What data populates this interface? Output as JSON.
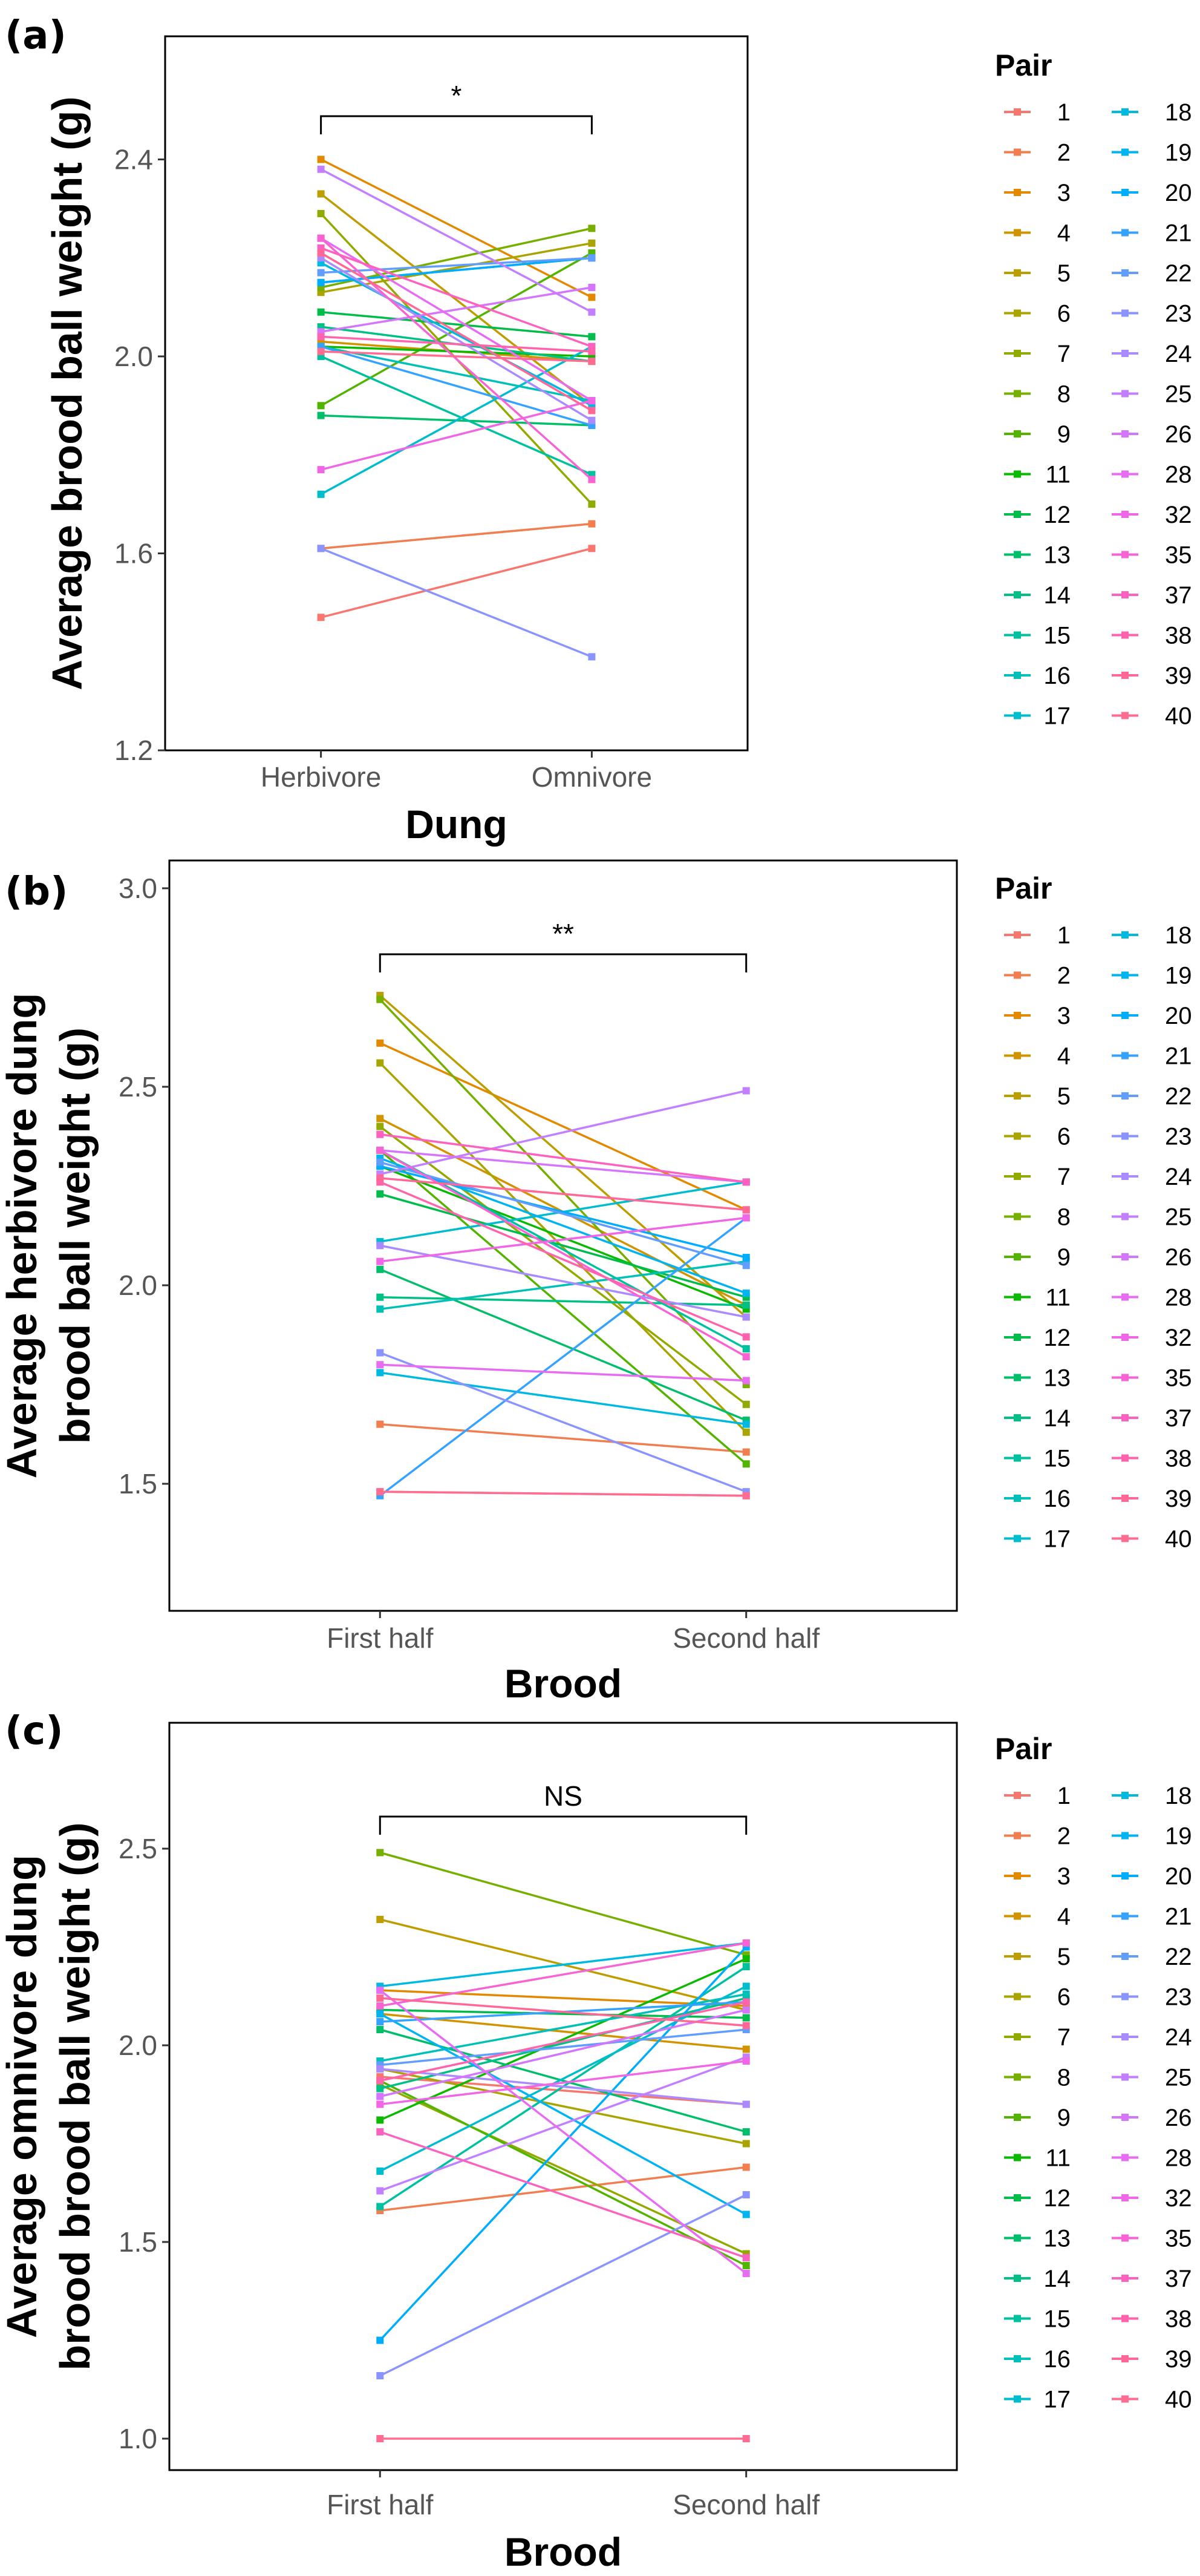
{
  "pairs": [
    "1",
    "2",
    "3",
    "4",
    "5",
    "6",
    "7",
    "8",
    "9",
    "11",
    "12",
    "13",
    "14",
    "15",
    "16",
    "17",
    "18",
    "19",
    "20",
    "21",
    "22",
    "23",
    "24",
    "25",
    "26",
    "28",
    "32",
    "35",
    "37",
    "38",
    "39",
    "40"
  ],
  "colors": [
    "#F8766D",
    "#F07E4F",
    "#E38900",
    "#D19400",
    "#BD9D00",
    "#A9A400",
    "#92AA00",
    "#77AF00",
    "#53B400",
    "#0BB901",
    "#00BC4A",
    "#00BE6A",
    "#00C085",
    "#00C19F",
    "#00C0B8",
    "#00BDCE",
    "#00B9E1",
    "#00B3F1",
    "#00ACFC",
    "#35A2FF",
    "#619CFF",
    "#8A94FF",
    "#A98BFF",
    "#C27FFF",
    "#D575FE",
    "#E76BF3",
    "#F066E6",
    "#F863D3",
    "#FC61C0",
    "#FF63AC",
    "#FF6797",
    "#FF6C91"
  ],
  "legend_title": "Pair",
  "chart_data": [
    {
      "type": "line",
      "panel": "(a)",
      "title": "",
      "xlabel": "Dung",
      "ylabel": "Average brood ball weight (g)",
      "categories": [
        "Herbivore",
        "Omnivore"
      ],
      "ylim": [
        1.2,
        2.65
      ],
      "yticks": [
        "1.2",
        "1.6",
        "2.0",
        "2.4"
      ],
      "significance": "*",
      "series": [
        {
          "name": "1",
          "values": [
            1.47,
            1.61
          ]
        },
        {
          "name": "2",
          "values": [
            1.61,
            1.66
          ]
        },
        {
          "name": "3",
          "values": [
            2.4,
            2.12
          ]
        },
        {
          "name": "4",
          "values": [
            2.03,
            1.99
          ]
        },
        {
          "name": "5",
          "values": [
            2.33,
            1.9
          ]
        },
        {
          "name": "6",
          "values": [
            2.13,
            2.23
          ]
        },
        {
          "name": "7",
          "values": [
            2.29,
            1.7
          ]
        },
        {
          "name": "8",
          "values": [
            2.14,
            2.26
          ]
        },
        {
          "name": "9",
          "values": [
            1.9,
            2.21
          ]
        },
        {
          "name": "11",
          "values": [
            2.02,
            2.0
          ]
        },
        {
          "name": "12",
          "values": [
            2.09,
            2.04
          ]
        },
        {
          "name": "13",
          "values": [
            1.88,
            1.86
          ]
        },
        {
          "name": "14",
          "values": [
            2.06,
            1.99
          ]
        },
        {
          "name": "15",
          "values": [
            2.0,
            1.76
          ]
        },
        {
          "name": "16",
          "values": [
            2.02,
            1.91
          ]
        },
        {
          "name": "17",
          "values": [
            1.72,
            2.02
          ]
        },
        {
          "name": "18",
          "values": [
            2.19,
            1.9
          ]
        },
        {
          "name": "19",
          "values": [
            2.15,
            2.2
          ]
        },
        {
          "name": "20",
          "values": [
            2.15,
            2.2
          ]
        },
        {
          "name": "21",
          "values": [
            2.02,
            1.86
          ]
        },
        {
          "name": "22",
          "values": [
            2.17,
            2.2
          ]
        },
        {
          "name": "23",
          "values": [
            1.61,
            1.39
          ]
        },
        {
          "name": "24",
          "values": [
            2.2,
            1.87
          ]
        },
        {
          "name": "25",
          "values": [
            2.38,
            2.09
          ]
        },
        {
          "name": "26",
          "values": [
            2.05,
            2.14
          ]
        },
        {
          "name": "28",
          "values": [
            2.24,
            1.91
          ]
        },
        {
          "name": "32",
          "values": [
            1.77,
            1.91
          ]
        },
        {
          "name": "35",
          "values": [
            2.24,
            1.75
          ]
        },
        {
          "name": "37",
          "values": [
            2.22,
            2.02
          ]
        },
        {
          "name": "38",
          "values": [
            2.04,
            2.01
          ]
        },
        {
          "name": "39",
          "values": [
            2.21,
            1.89
          ]
        },
        {
          "name": "40",
          "values": [
            2.01,
            1.99
          ]
        }
      ]
    },
    {
      "type": "line",
      "panel": "(b)",
      "title": "",
      "xlabel": "Brood",
      "ylabel": "Average herbivore dung brood ball weight (g)",
      "ylabel_lines": [
        "Average herbivore dung",
        "brood ball weight (g)"
      ],
      "categories": [
        "First half",
        "Second half"
      ],
      "ylim": [
        1.18,
        3.07
      ],
      "yticks": [
        "1.5",
        "2.0",
        "2.5",
        "3.0"
      ],
      "significance": "**",
      "series": [
        {
          "name": "1",
          "values": [
            1.48,
            1.47
          ]
        },
        {
          "name": "2",
          "values": [
            1.65,
            1.58
          ]
        },
        {
          "name": "3",
          "values": [
            2.61,
            2.19
          ]
        },
        {
          "name": "4",
          "values": [
            2.42,
            1.95
          ]
        },
        {
          "name": "5",
          "values": [
            2.73,
            1.92
          ]
        },
        {
          "name": "6",
          "values": [
            2.56,
            1.63
          ]
        },
        {
          "name": "7",
          "values": [
            2.4,
            1.7
          ]
        },
        {
          "name": "8",
          "values": [
            2.72,
            1.75
          ]
        },
        {
          "name": "9",
          "values": [
            2.34,
            1.55
          ]
        },
        {
          "name": "11",
          "values": [
            2.3,
            1.94
          ]
        },
        {
          "name": "12",
          "values": [
            2.23,
            1.97
          ]
        },
        {
          "name": "13",
          "values": [
            2.04,
            1.66
          ]
        },
        {
          "name": "14",
          "values": [
            1.97,
            1.95
          ]
        },
        {
          "name": "15",
          "values": [
            2.34,
            1.84
          ]
        },
        {
          "name": "16",
          "values": [
            1.94,
            2.06
          ]
        },
        {
          "name": "17",
          "values": [
            2.11,
            2.26
          ]
        },
        {
          "name": "18",
          "values": [
            1.78,
            1.65
          ]
        },
        {
          "name": "19",
          "values": [
            2.32,
            1.98
          ]
        },
        {
          "name": "20",
          "values": [
            2.3,
            2.07
          ]
        },
        {
          "name": "21",
          "values": [
            1.47,
            2.17
          ]
        },
        {
          "name": "22",
          "values": [
            2.31,
            2.05
          ]
        },
        {
          "name": "23",
          "values": [
            1.83,
            1.48
          ]
        },
        {
          "name": "24",
          "values": [
            2.1,
            1.92
          ]
        },
        {
          "name": "25",
          "values": [
            2.28,
            2.49
          ]
        },
        {
          "name": "26",
          "values": [
            2.34,
            2.26
          ]
        },
        {
          "name": "28",
          "values": [
            1.8,
            1.76
          ]
        },
        {
          "name": "32",
          "values": [
            2.06,
            2.17
          ]
        },
        {
          "name": "35",
          "values": [
            2.34,
            1.82
          ]
        },
        {
          "name": "37",
          "values": [
            2.38,
            2.26
          ]
        },
        {
          "name": "38",
          "values": [
            2.26,
            1.87
          ]
        },
        {
          "name": "39",
          "values": [
            2.27,
            2.19
          ]
        },
        {
          "name": "40",
          "values": [
            1.48,
            1.47
          ]
        }
      ]
    },
    {
      "type": "line",
      "panel": "(c)",
      "title": "",
      "xlabel": "Brood",
      "ylabel": "Average omnivore dung brood brood ball weight (g)",
      "ylabel_lines": [
        "Average omnivore dung",
        "brood brood ball weight (g)"
      ],
      "categories": [
        "First half",
        "Second half"
      ],
      "ylim": [
        0.92,
        2.82
      ],
      "yticks": [
        "1.0",
        "1.5",
        "2.0",
        "2.5"
      ],
      "significance": "NS",
      "series": [
        {
          "name": "1",
          "values": [
            1.92,
            1.85
          ]
        },
        {
          "name": "2",
          "values": [
            1.58,
            1.69
          ]
        },
        {
          "name": "3",
          "values": [
            2.14,
            2.1
          ]
        },
        {
          "name": "4",
          "values": [
            2.08,
            1.99
          ]
        },
        {
          "name": "5",
          "values": [
            2.32,
            2.09
          ]
        },
        {
          "name": "6",
          "values": [
            1.94,
            1.75
          ]
        },
        {
          "name": "7",
          "values": [
            1.9,
            1.47
          ]
        },
        {
          "name": "8",
          "values": [
            2.49,
            2.23
          ]
        },
        {
          "name": "9",
          "values": [
            1.91,
            1.44
          ]
        },
        {
          "name": "11",
          "values": [
            1.81,
            2.22
          ]
        },
        {
          "name": "12",
          "values": [
            2.09,
            2.07
          ]
        },
        {
          "name": "13",
          "values": [
            2.04,
            1.78
          ]
        },
        {
          "name": "14",
          "values": [
            1.89,
            2.12
          ]
        },
        {
          "name": "15",
          "values": [
            1.59,
            2.2
          ]
        },
        {
          "name": "16",
          "values": [
            1.96,
            2.13
          ]
        },
        {
          "name": "17",
          "values": [
            1.68,
            2.15
          ]
        },
        {
          "name": "18",
          "values": [
            2.15,
            2.26
          ]
        },
        {
          "name": "19",
          "values": [
            2.08,
            1.57
          ]
        },
        {
          "name": "20",
          "values": [
            1.25,
            2.25
          ]
        },
        {
          "name": "21",
          "values": [
            2.06,
            2.11
          ]
        },
        {
          "name": "22",
          "values": [
            1.95,
            2.04
          ]
        },
        {
          "name": "23",
          "values": [
            1.16,
            1.62
          ]
        },
        {
          "name": "24",
          "values": [
            1.94,
            1.85
          ]
        },
        {
          "name": "25",
          "values": [
            1.63,
            1.97
          ]
        },
        {
          "name": "26",
          "values": [
            1.87,
            2.09
          ]
        },
        {
          "name": "28",
          "values": [
            2.14,
            1.42
          ]
        },
        {
          "name": "32",
          "values": [
            1.85,
            1.96
          ]
        },
        {
          "name": "35",
          "values": [
            2.1,
            2.26
          ]
        },
        {
          "name": "37",
          "values": [
            1.78,
            1.46
          ]
        },
        {
          "name": "38",
          "values": [
            1.91,
            2.11
          ]
        },
        {
          "name": "39",
          "values": [
            2.12,
            2.05
          ]
        },
        {
          "name": "40",
          "values": [
            1.0,
            1.0
          ]
        }
      ]
    }
  ]
}
